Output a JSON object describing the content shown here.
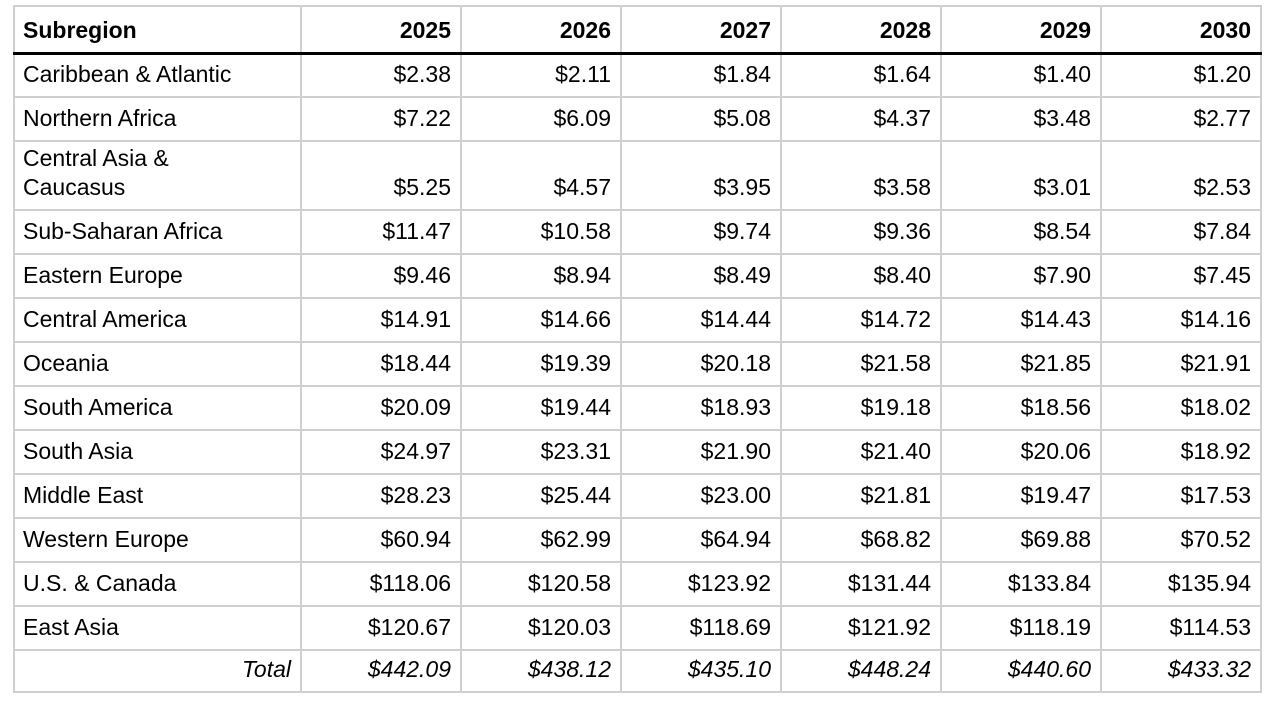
{
  "table": {
    "header": {
      "subregion_label": "Subregion",
      "years": [
        "2025",
        "2026",
        "2027",
        "2028",
        "2029",
        "2030"
      ]
    },
    "rows": [
      {
        "name": "Caribbean & Atlantic",
        "values": [
          "$2.38",
          "$2.11",
          "$1.84",
          "$1.64",
          "$1.40",
          "$1.20"
        ]
      },
      {
        "name": "Northern Africa",
        "values": [
          "$7.22",
          "$6.09",
          "$5.08",
          "$4.37",
          "$3.48",
          "$2.77"
        ]
      },
      {
        "name": "Central Asia &\nCaucasus",
        "values": [
          "$5.25",
          "$4.57",
          "$3.95",
          "$3.58",
          "$3.01",
          "$2.53"
        ]
      },
      {
        "name": "Sub-Saharan Africa",
        "values": [
          "$11.47",
          "$10.58",
          "$9.74",
          "$9.36",
          "$8.54",
          "$7.84"
        ]
      },
      {
        "name": "Eastern Europe",
        "values": [
          "$9.46",
          "$8.94",
          "$8.49",
          "$8.40",
          "$7.90",
          "$7.45"
        ]
      },
      {
        "name": "Central America",
        "values": [
          "$14.91",
          "$14.66",
          "$14.44",
          "$14.72",
          "$14.43",
          "$14.16"
        ]
      },
      {
        "name": "Oceania",
        "values": [
          "$18.44",
          "$19.39",
          "$20.18",
          "$21.58",
          "$21.85",
          "$21.91"
        ]
      },
      {
        "name": "South America",
        "values": [
          "$20.09",
          "$19.44",
          "$18.93",
          "$19.18",
          "$18.56",
          "$18.02"
        ]
      },
      {
        "name": "South Asia",
        "values": [
          "$24.97",
          "$23.31",
          "$21.90",
          "$21.40",
          "$20.06",
          "$18.92"
        ]
      },
      {
        "name": "Middle East",
        "values": [
          "$28.23",
          "$25.44",
          "$23.00",
          "$21.81",
          "$19.47",
          "$17.53"
        ]
      },
      {
        "name": "Western Europe",
        "values": [
          "$60.94",
          "$62.99",
          "$64.94",
          "$68.82",
          "$69.88",
          "$70.52"
        ]
      },
      {
        "name": "U.S. & Canada",
        "values": [
          "$118.06",
          "$120.58",
          "$123.92",
          "$131.44",
          "$133.84",
          "$135.94"
        ]
      },
      {
        "name": "East Asia",
        "values": [
          "$120.67",
          "$120.03",
          "$118.69",
          "$121.92",
          "$118.19",
          "$114.53"
        ]
      }
    ],
    "total": {
      "label": "Total",
      "values": [
        "$442.09",
        "$438.12",
        "$435.10",
        "$448.24",
        "$440.60",
        "$433.32"
      ]
    }
  },
  "chart_data": {
    "type": "table",
    "columns": [
      "Subregion",
      "2025",
      "2026",
      "2027",
      "2028",
      "2029",
      "2030"
    ],
    "rows": [
      [
        "Caribbean & Atlantic",
        2.38,
        2.11,
        1.84,
        1.64,
        1.4,
        1.2
      ],
      [
        "Northern Africa",
        7.22,
        6.09,
        5.08,
        4.37,
        3.48,
        2.77
      ],
      [
        "Central Asia & Caucasus",
        5.25,
        4.57,
        3.95,
        3.58,
        3.01,
        2.53
      ],
      [
        "Sub-Saharan Africa",
        11.47,
        10.58,
        9.74,
        9.36,
        8.54,
        7.84
      ],
      [
        "Eastern Europe",
        9.46,
        8.94,
        8.49,
        8.4,
        7.9,
        7.45
      ],
      [
        "Central America",
        14.91,
        14.66,
        14.44,
        14.72,
        14.43,
        14.16
      ],
      [
        "Oceania",
        18.44,
        19.39,
        20.18,
        21.58,
        21.85,
        21.91
      ],
      [
        "South America",
        20.09,
        19.44,
        18.93,
        19.18,
        18.56,
        18.02
      ],
      [
        "South Asia",
        24.97,
        23.31,
        21.9,
        21.4,
        20.06,
        18.92
      ],
      [
        "Middle East",
        28.23,
        25.44,
        23.0,
        21.81,
        19.47,
        17.53
      ],
      [
        "Western Europe",
        60.94,
        62.99,
        64.94,
        68.82,
        69.88,
        70.52
      ],
      [
        "U.S. & Canada",
        118.06,
        120.58,
        123.92,
        131.44,
        133.84,
        135.94
      ],
      [
        "East Asia",
        120.67,
        120.03,
        118.69,
        121.92,
        118.19,
        114.53
      ]
    ],
    "total_row": [
      "Total",
      442.09,
      438.12,
      435.1,
      448.24,
      440.6,
      433.32
    ],
    "value_format": "USD, 2 decimal places"
  },
  "colors": {
    "gridline": "#cfcfcf",
    "rule": "#000000",
    "text": "#000000",
    "background": "#ffffff"
  }
}
